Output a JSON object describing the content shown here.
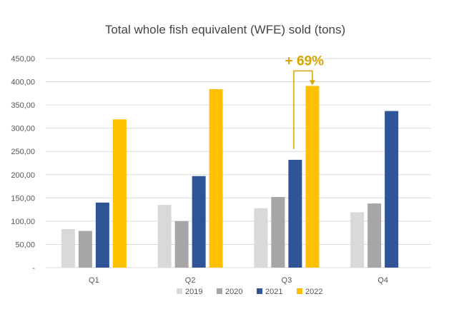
{
  "chart_data": {
    "type": "bar",
    "title": "Total whole fish equivalent (WFE) sold (tons)",
    "xlabel": "",
    "ylabel": "",
    "categories": [
      "Q1",
      "Q2",
      "Q3",
      "Q4"
    ],
    "ylim": [
      0,
      450
    ],
    "y_ticks": [
      {
        "value": 0,
        "label": "-"
      },
      {
        "value": 50,
        "label": "50,00"
      },
      {
        "value": 100,
        "label": "100,00"
      },
      {
        "value": 150,
        "label": "150,00"
      },
      {
        "value": 200,
        "label": "200,00"
      },
      {
        "value": 250,
        "label": "250,00"
      },
      {
        "value": 300,
        "label": "300,00"
      },
      {
        "value": 350,
        "label": "350,00"
      },
      {
        "value": 400,
        "label": "400,00"
      },
      {
        "value": 450,
        "label": "450,00"
      }
    ],
    "grid": true,
    "legend_position": "bottom",
    "series": [
      {
        "name": "2019",
        "color": "#d9d9d9",
        "values": [
          83,
          135,
          128,
          119
        ]
      },
      {
        "name": "2020",
        "color": "#a6a6a6",
        "values": [
          79,
          100,
          152,
          138
        ]
      },
      {
        "name": "2021",
        "color": "#2f5597",
        "values": [
          140,
          197,
          232,
          337
        ]
      },
      {
        "name": "2022",
        "color": "#ffc000",
        "values": [
          319,
          384,
          391,
          null
        ]
      }
    ],
    "annotation": {
      "text": "+ 69%",
      "color": "#d4a600",
      "from_series": "2021",
      "to_series": "2022",
      "category": "Q3"
    }
  }
}
